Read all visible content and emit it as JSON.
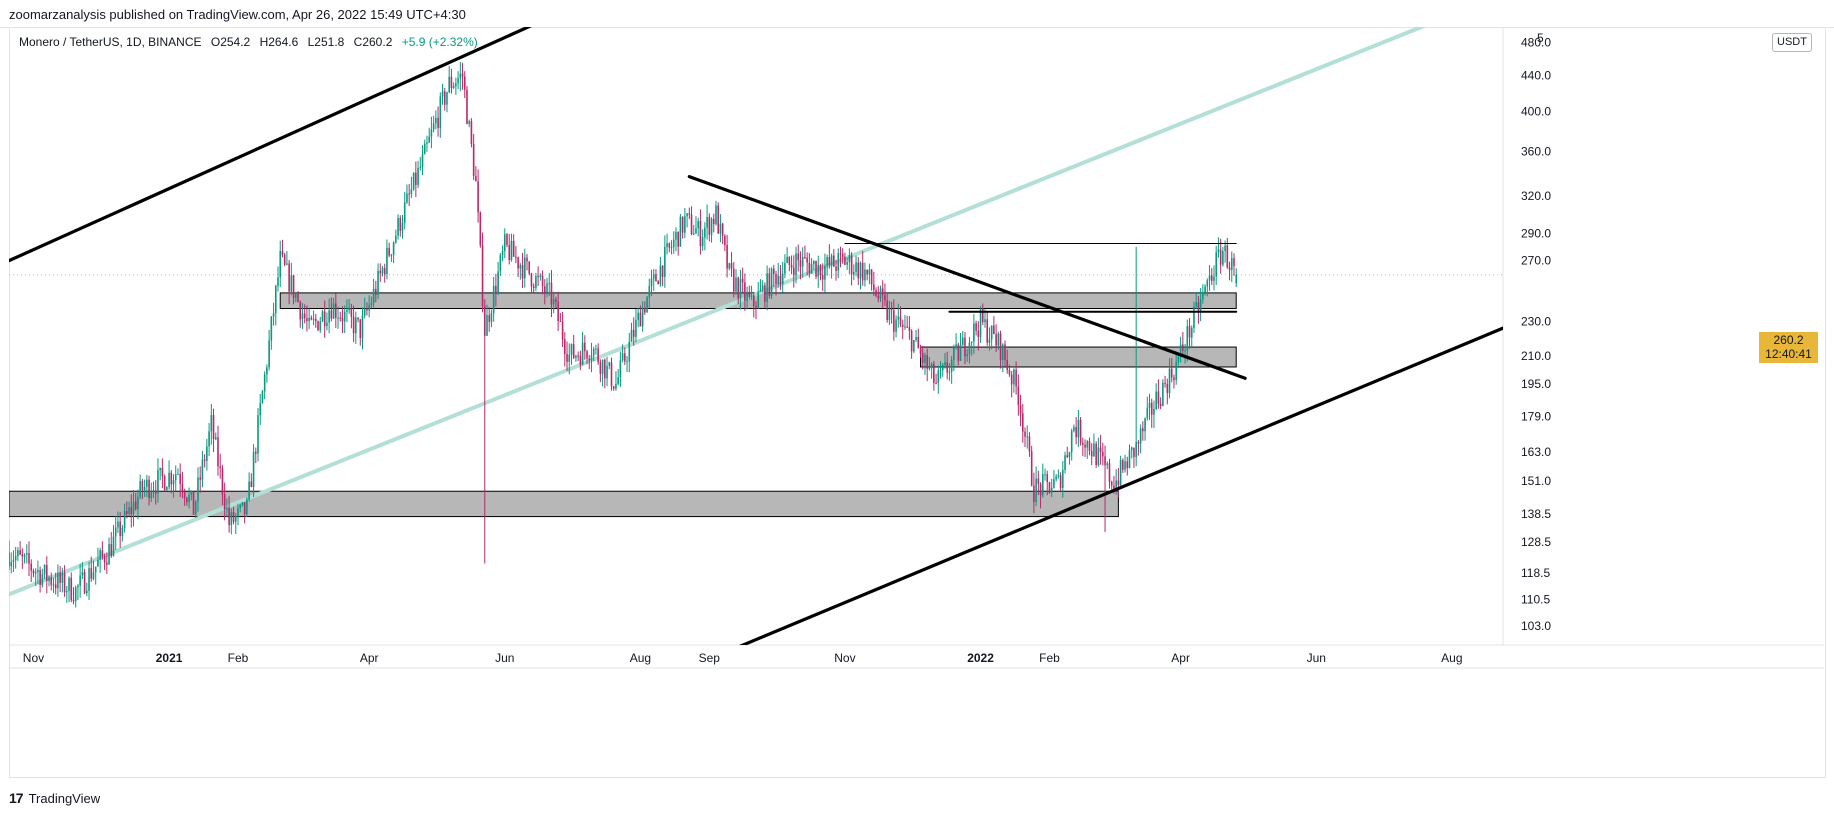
{
  "header": {
    "published": "zoomarzanalysis published on TradingView.com, Apr 26, 2022 15:49 UTC+4:30"
  },
  "legend": {
    "symbol": "Monero / TetherUS, 1D, BINANCE",
    "open": "O254.2",
    "high": "H264.6",
    "low": "L251.8",
    "close": "C260.2",
    "change": "+5.9 (+2.32%)"
  },
  "price_axis": {
    "currency_button": "USDT",
    "last_price": "260.2",
    "countdown": "12:40:41",
    "top_clipped_label": "5"
  },
  "footer": {
    "logo": "17",
    "brand": "TradingView"
  },
  "colors": {
    "up": "#089981",
    "down": "#b8286b",
    "channel_line": "#b2dfd6",
    "zone_fill": "#b7b7b7",
    "trendline": "#000000",
    "last_price": "#e8b73a"
  },
  "chart_data": {
    "type": "candlestick",
    "symbol": "XMRUSDT",
    "interval": "1D",
    "y_scale": "log",
    "ylim": [
      98,
      500
    ],
    "xlim": [
      "2020-10-21",
      "2022-08-24"
    ],
    "y_ticks": [
      480.0,
      440.0,
      400.0,
      360.0,
      320.0,
      290.0,
      270.0,
      230.0,
      210.0,
      195.0,
      179.0,
      163.0,
      151.0,
      138.5,
      128.5,
      118.5,
      110.5,
      103.0
    ],
    "x_ticks": [
      {
        "label": "Nov",
        "date": "2020-11-01"
      },
      {
        "label": "2021",
        "date": "2021-01-01"
      },
      {
        "label": "Feb",
        "date": "2021-02-01"
      },
      {
        "label": "Apr",
        "date": "2021-04-01"
      },
      {
        "label": "Jun",
        "date": "2021-06-01"
      },
      {
        "label": "Aug",
        "date": "2021-08-01"
      },
      {
        "label": "Sep",
        "date": "2021-09-01"
      },
      {
        "label": "Nov",
        "date": "2021-11-01"
      },
      {
        "label": "2022",
        "date": "2022-01-01"
      },
      {
        "label": "Feb",
        "date": "2022-02-01"
      },
      {
        "label": "Apr",
        "date": "2022-04-01"
      },
      {
        "label": "Jun",
        "date": "2022-06-01"
      },
      {
        "label": "Aug",
        "date": "2022-08-01"
      }
    ],
    "last": {
      "open": 254.2,
      "high": 264.6,
      "low": 251.8,
      "close": 260.2
    },
    "price_path": [
      [
        "2020-10-21",
        125
      ],
      [
        "2020-11-05",
        118
      ],
      [
        "2020-11-20",
        113
      ],
      [
        "2020-12-05",
        126
      ],
      [
        "2020-12-20",
        148
      ],
      [
        "2021-01-05",
        155
      ],
      [
        "2021-01-12",
        140
      ],
      [
        "2021-01-20",
        175
      ],
      [
        "2021-01-28",
        135
      ],
      [
        "2021-02-05",
        140
      ],
      [
        "2021-02-12",
        190
      ],
      [
        "2021-02-20",
        270
      ],
      [
        "2021-02-26",
        250
      ],
      [
        "2021-03-05",
        225
      ],
      [
        "2021-03-15",
        240
      ],
      [
        "2021-03-28",
        225
      ],
      [
        "2021-04-05",
        255
      ],
      [
        "2021-04-15",
        300
      ],
      [
        "2021-04-25",
        350
      ],
      [
        "2021-05-01",
        390
      ],
      [
        "2021-05-07",
        430
      ],
      [
        "2021-05-13",
        440
      ],
      [
        "2021-05-19",
        330
      ],
      [
        "2021-05-23",
        225
      ],
      [
        "2021-06-01",
        280
      ],
      [
        "2021-06-10",
        265
      ],
      [
        "2021-06-22",
        245
      ],
      [
        "2021-06-30",
        210
      ],
      [
        "2021-07-10",
        215
      ],
      [
        "2021-07-21",
        195
      ],
      [
        "2021-08-01",
        235
      ],
      [
        "2021-08-10",
        265
      ],
      [
        "2021-08-21",
        300
      ],
      [
        "2021-08-28",
        290
      ],
      [
        "2021-09-04",
        305
      ],
      [
        "2021-09-10",
        260
      ],
      [
        "2021-09-20",
        240
      ],
      [
        "2021-10-01",
        260
      ],
      [
        "2021-10-10",
        270
      ],
      [
        "2021-10-22",
        265
      ],
      [
        "2021-11-01",
        270
      ],
      [
        "2021-11-10",
        262
      ],
      [
        "2021-11-20",
        235
      ],
      [
        "2021-12-01",
        220
      ],
      [
        "2021-12-12",
        195
      ],
      [
        "2021-12-24",
        215
      ],
      [
        "2022-01-01",
        230
      ],
      [
        "2022-01-10",
        215
      ],
      [
        "2022-01-18",
        190
      ],
      [
        "2022-01-25",
        148
      ],
      [
        "2022-02-05",
        150
      ],
      [
        "2022-02-12",
        175
      ],
      [
        "2022-02-22",
        162
      ],
      [
        "2022-03-02",
        150
      ],
      [
        "2022-03-12",
        165
      ],
      [
        "2022-03-20",
        185
      ],
      [
        "2022-03-30",
        205
      ],
      [
        "2022-04-08",
        235
      ],
      [
        "2022-04-16",
        265
      ],
      [
        "2022-04-20",
        278
      ],
      [
        "2022-04-26",
        260
      ]
    ],
    "spikes": [
      {
        "date": "2021-05-23",
        "low": 121.5
      },
      {
        "date": "2022-02-26",
        "low": 132
      },
      {
        "date": "2022-03-12",
        "high": 280
      }
    ],
    "drawings": {
      "zones": [
        {
          "from": "2021-02-20",
          "to": "2022-04-26",
          "low": 238,
          "high": 248
        },
        {
          "from": "2021-12-05",
          "to": "2022-04-26",
          "low": 204,
          "high": 215
        },
        {
          "from": "2020-10-21",
          "to": "2022-03-04",
          "low": 137.5,
          "high": 147
        }
      ],
      "lines": [
        {
          "role": "upper-channel",
          "from": [
            "2020-10-21",
            270
          ],
          "to": [
            "2021-06-30",
            525
          ]
        },
        {
          "role": "channel-midline",
          "from": [
            "2020-10-21",
            112
          ],
          "to": [
            "2022-08-08",
            525
          ]
        },
        {
          "role": "descending-trendline",
          "from": [
            "2021-08-23",
            337
          ],
          "to": [
            "2022-04-30",
            198
          ]
        },
        {
          "role": "lower-channel",
          "from": [
            "2021-09-12",
            97
          ],
          "to": [
            "2022-08-24",
            226
          ]
        },
        {
          "role": "resistance-level",
          "from": [
            "2021-11-01",
            282.5
          ],
          "to": [
            "2022-04-26",
            282.5
          ]
        },
        {
          "role": "support-level",
          "from": [
            "2021-12-18",
            236
          ],
          "to": [
            "2022-04-26",
            236
          ]
        }
      ]
    }
  }
}
